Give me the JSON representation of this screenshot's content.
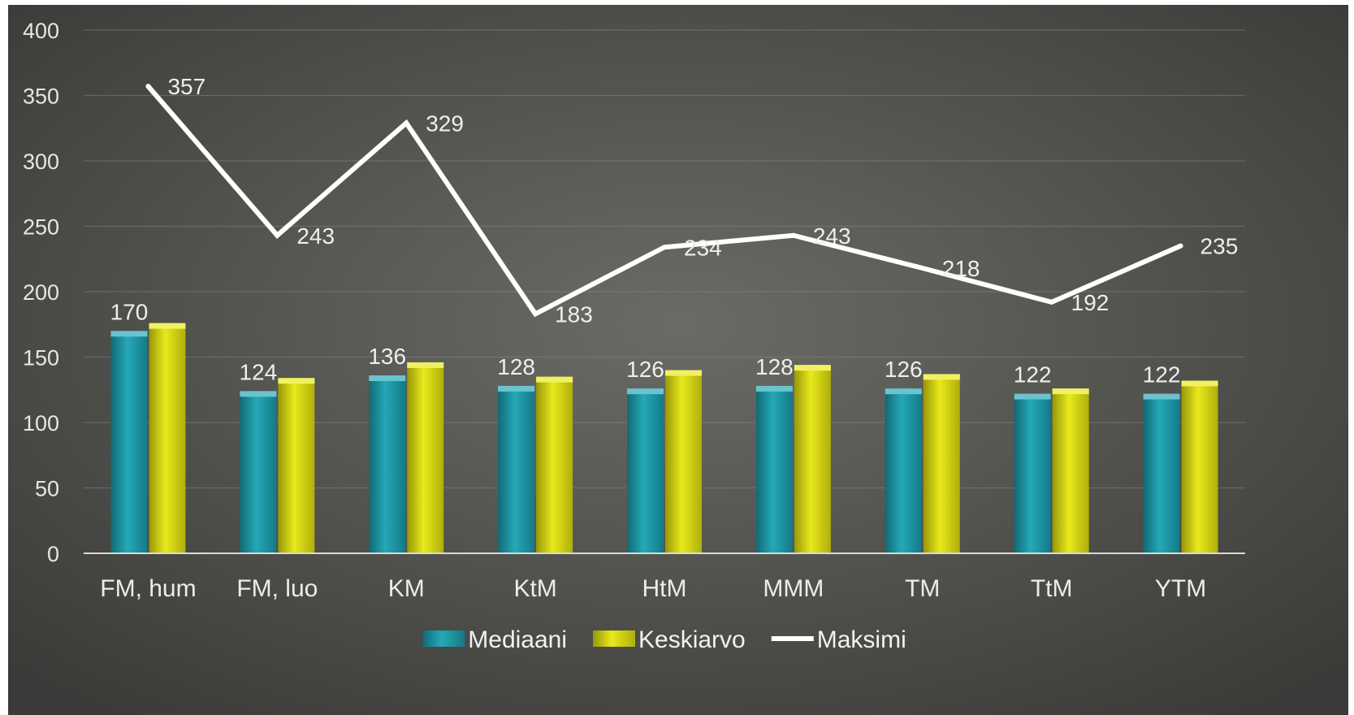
{
  "chart_data": {
    "type": "bar",
    "title": "",
    "xlabel": "",
    "ylabel": "",
    "ylim": [
      0,
      400
    ],
    "yticks": [
      0,
      50,
      100,
      150,
      200,
      250,
      300,
      350,
      400
    ],
    "grid": true,
    "legend_position": "bottom",
    "categories": [
      "FM, hum",
      "FM, luo",
      "KM",
      "KtM",
      "HtM",
      "MMM",
      "TM",
      "TtM",
      "YTM"
    ],
    "series": [
      {
        "name": "Mediaani",
        "type": "bar",
        "color": "#1aa3b3",
        "values": [
          170,
          124,
          136,
          128,
          126,
          128,
          126,
          122,
          122
        ],
        "labels": [
          "170",
          "124",
          "136",
          "128",
          "126",
          "128",
          "126",
          "122",
          "122"
        ]
      },
      {
        "name": "Keskiarvo",
        "type": "bar",
        "color": "#e8e810",
        "values": [
          176,
          134,
          146,
          135,
          140,
          144,
          137,
          126,
          132
        ]
      },
      {
        "name": "Maksimi",
        "type": "line",
        "color": "#ffffff",
        "values": [
          357,
          243,
          329,
          183,
          234,
          243,
          218,
          192,
          235
        ],
        "labels": [
          "357",
          "243",
          "329",
          "183",
          "234",
          "243",
          "218",
          "192",
          "235"
        ]
      }
    ],
    "background": {
      "center": "#6b6b66",
      "edge": "#3a3a38"
    }
  }
}
